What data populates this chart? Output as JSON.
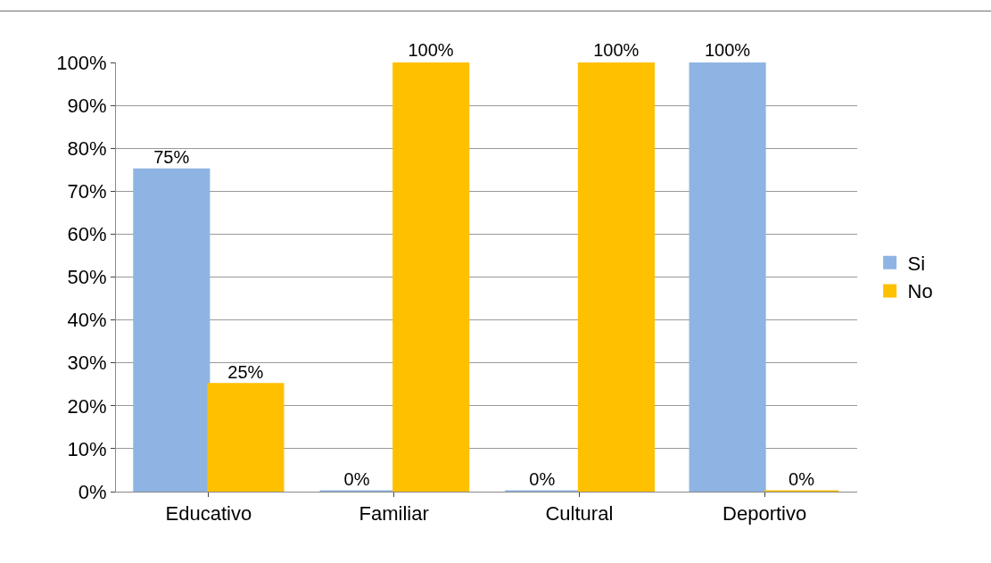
{
  "chart_data": {
    "type": "bar",
    "categories": [
      "Educativo",
      "Familiar",
      "Cultural",
      "Deportivo"
    ],
    "series": [
      {
        "name": "Si",
        "color": "#8eb4e3",
        "values": [
          75,
          0,
          0,
          100
        ],
        "value_labels": [
          "75%",
          "0%",
          "0%",
          "100%"
        ]
      },
      {
        "name": "No",
        "color": "#ffc000",
        "values": [
          25,
          100,
          100,
          0
        ],
        "value_labels": [
          "25%",
          "100%",
          "100%",
          "0%"
        ]
      }
    ],
    "ylim": [
      0,
      100
    ],
    "yticks": [
      {
        "value": 0,
        "label": "0%"
      },
      {
        "value": 10,
        "label": "10%"
      },
      {
        "value": 20,
        "label": "20%"
      },
      {
        "value": 30,
        "label": "30%"
      },
      {
        "value": 40,
        "label": "40%"
      },
      {
        "value": 50,
        "label": "50%"
      },
      {
        "value": 60,
        "label": "60%"
      },
      {
        "value": 70,
        "label": "70%"
      },
      {
        "value": 80,
        "label": "80%"
      },
      {
        "value": 90,
        "label": "90%"
      },
      {
        "value": 100,
        "label": "100%"
      }
    ],
    "grid": "y",
    "legend": "right"
  }
}
